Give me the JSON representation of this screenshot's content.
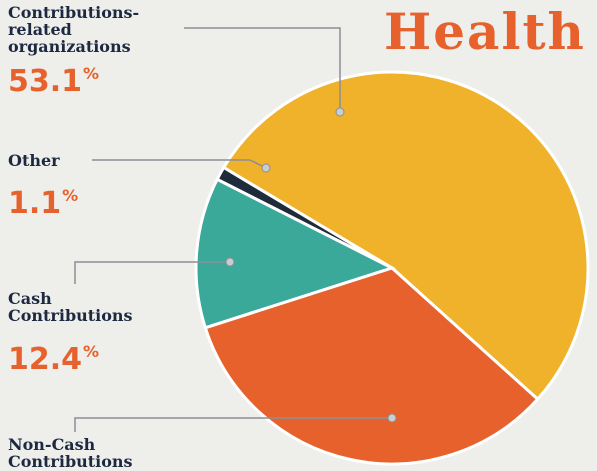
{
  "chart_data": {
    "type": "pie",
    "title": "Health",
    "categories": [
      "Contributions-related organizations",
      "Other",
      "Cash Contributions",
      "Non-Cash Contributions"
    ],
    "values": [
      53.1,
      1.1,
      12.4,
      33.4
    ],
    "unit": "%",
    "colors": [
      "#efb22a",
      "#1f2b3b",
      "#3ba99a",
      "#e6612c"
    ]
  }
}
